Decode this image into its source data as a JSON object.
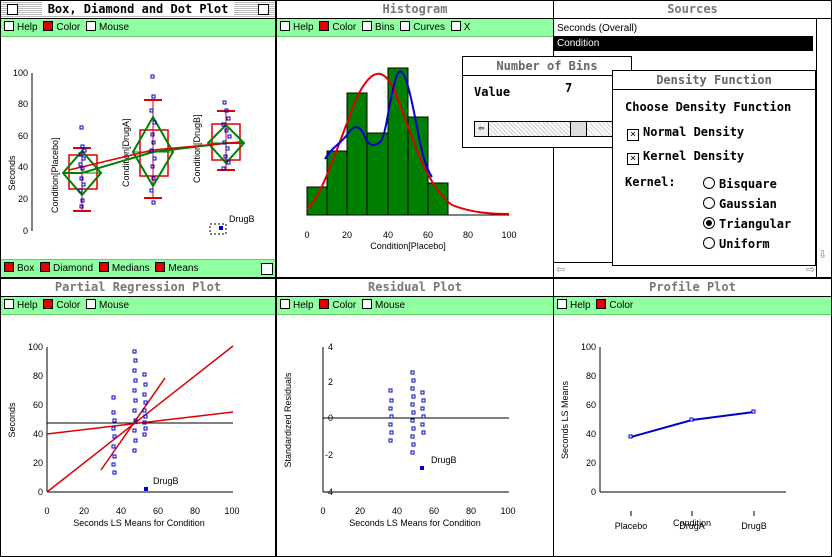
{
  "box_window": {
    "title": "Box, Diamond and Dot Plot",
    "options": [
      "Help",
      "Color",
      "Mouse"
    ],
    "y_ticks": [
      "0",
      "20",
      "40",
      "60",
      "80",
      "100"
    ],
    "y_label": "Seconds",
    "group_labels": [
      "Condition[Placebo]",
      "Condition[DrugA]",
      "Condition[DrugB]"
    ],
    "point_label": "DrugB",
    "bottom_options": [
      "Box",
      "Diamond",
      "Medians",
      "Means"
    ]
  },
  "histogram_window": {
    "title": "Histogram",
    "options": [
      "Help",
      "Color",
      "Bins",
      "Curves",
      "X"
    ],
    "x_ticks": [
      "0",
      "20",
      "40",
      "60",
      "80",
      "100"
    ],
    "x_label": "Condition[Placebo]"
  },
  "sources_window": {
    "title": "Sources",
    "items": [
      "Seconds (Overall)",
      "Condition"
    ]
  },
  "bins_dialog": {
    "title": "Number of Bins",
    "value_label": "Value",
    "value": "7"
  },
  "density_dialog": {
    "title": "Density Function",
    "heading": "Choose Density Function",
    "checks": [
      "Normal Density",
      "Kernel Density"
    ],
    "kernel_label": "Kernel:",
    "kernels": [
      "Bisquare",
      "Gaussian",
      "Triangular",
      "Uniform"
    ],
    "selected_kernel": "Triangular"
  },
  "partial_window": {
    "title": "Partial Regression Plot",
    "options": [
      "Help",
      "Color",
      "Mouse"
    ],
    "y_ticks": [
      "0",
      "20",
      "40",
      "60",
      "80",
      "100"
    ],
    "x_ticks": [
      "0",
      "20",
      "40",
      "60",
      "80",
      "100"
    ],
    "y_label": "Seconds",
    "x_label": "Seconds LS Means for Condition",
    "point_label": "DrugB"
  },
  "residual_window": {
    "title": "Residual Plot",
    "options": [
      "Help",
      "Color",
      "Mouse"
    ],
    "y_ticks": [
      "-4",
      "-2",
      "0",
      "2",
      "4"
    ],
    "x_ticks": [
      "0",
      "20",
      "40",
      "60",
      "80",
      "100"
    ],
    "y_label": "Standardized Residuals",
    "x_label": "Seconds LS Means for Condition",
    "point_label": "DrugB"
  },
  "profile_window": {
    "title": "Profile Plot",
    "options": [
      "Help",
      "Color"
    ],
    "y_ticks": [
      "0",
      "20",
      "40",
      "60",
      "80",
      "100"
    ],
    "y_label": "Seconds LS Means",
    "x_ticks": [
      "Placebo",
      "DrugA",
      "DrugB"
    ],
    "x_label": "Condition"
  },
  "colors": {
    "option_bar": "#8fffa2",
    "red": "#e00000",
    "green": "#008000",
    "blue": "#0000cc"
  }
}
